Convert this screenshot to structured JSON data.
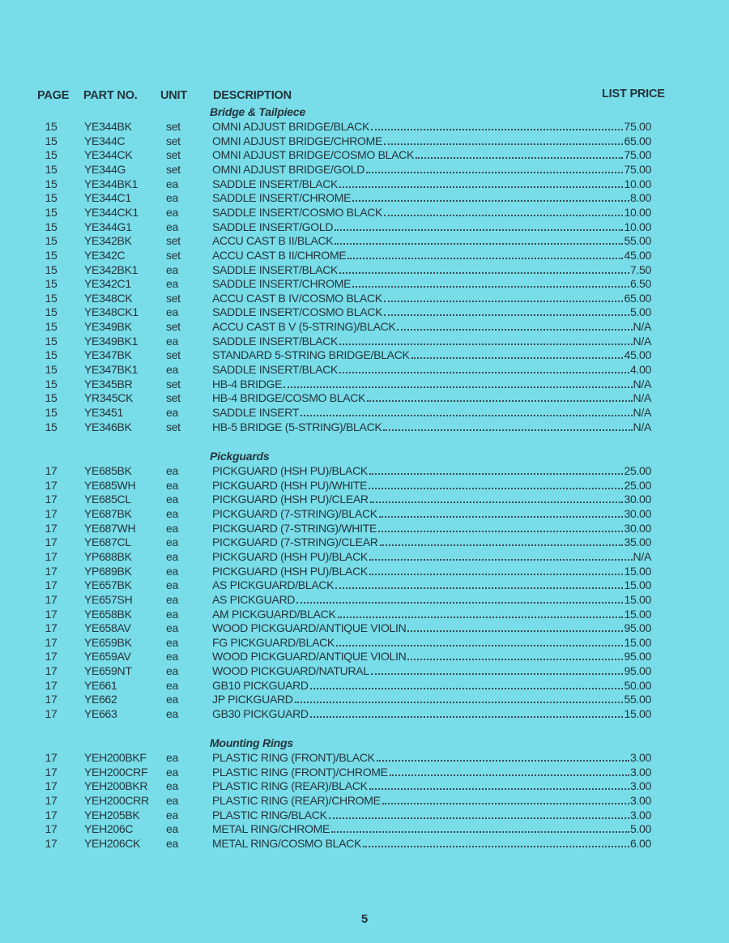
{
  "header": {
    "page": "PAGE",
    "part_no": "PART NO.",
    "unit": "UNIT",
    "description": "DESCRIPTION",
    "list_price": "LIST PRICE"
  },
  "sections": [
    {
      "title": "Bridge & Tailpiece",
      "rows": [
        [
          "15",
          "YE344BK",
          "set",
          "OMNI ADJUST BRIDGE/BLACK",
          "75.00"
        ],
        [
          "15",
          "YE344C",
          "set",
          "OMNI ADJUST BRIDGE/CHROME",
          "65.00"
        ],
        [
          "15",
          "YE344CK",
          "set",
          "OMNI ADJUST BRIDGE/COSMO BLACK",
          "75.00"
        ],
        [
          "15",
          "YE344G",
          "set",
          "OMNI ADJUST BRIDGE/GOLD",
          "75.00"
        ],
        [
          "15",
          "YE344BK1",
          "ea",
          "SADDLE INSERT/BLACK",
          "10.00"
        ],
        [
          "15",
          "YE344C1",
          "ea",
          "SADDLE INSERT/CHROME",
          "8.00"
        ],
        [
          "15",
          "YE344CK1",
          "ea",
          "SADDLE INSERT/COSMO BLACK",
          "10.00"
        ],
        [
          "15",
          "YE344G1",
          "ea",
          "SADDLE INSERT/GOLD",
          "10.00"
        ],
        [
          "15",
          "YE342BK",
          "set",
          "ACCU CAST B II/BLACK",
          "55.00"
        ],
        [
          "15",
          "YE342C",
          "set",
          "ACCU CAST B II/CHROME",
          "45.00"
        ],
        [
          "15",
          "YE342BK1",
          "ea",
          "SADDLE INSERT/BLACK",
          "7.50"
        ],
        [
          "15",
          "YE342C1",
          "ea",
          "SADDLE INSERT/CHROME",
          "6.50"
        ],
        [
          "15",
          "YE348CK",
          "set",
          "ACCU CAST B IV/COSMO BLACK",
          "65.00"
        ],
        [
          "15",
          "YE348CK1",
          "ea",
          "SADDLE INSERT/COSMO BLACK",
          "5.00"
        ],
        [
          "15",
          "YE349BK",
          "set",
          "ACCU CAST B V (5-STRING)/BLACK",
          "N/A"
        ],
        [
          "15",
          "YE349BK1",
          "ea",
          "SADDLE INSERT/BLACK",
          "N/A"
        ],
        [
          "15",
          "YE347BK",
          "set",
          "STANDARD 5-STRING BRIDGE/BLACK",
          "45.00"
        ],
        [
          "15",
          "YE347BK1",
          "ea",
          "SADDLE INSERT/BLACK",
          "4.00"
        ],
        [
          "15",
          "YE345BR",
          "set",
          "HB-4 BRIDGE",
          "N/A"
        ],
        [
          "15",
          "YR345CK",
          "set",
          "HB-4 BRIDGE/COSMO BLACK",
          "N/A"
        ],
        [
          "15",
          "YE3451",
          "ea",
          "SADDLE INSERT",
          "N/A"
        ],
        [
          "15",
          "YE346BK",
          "set",
          "HB-5 BRIDGE (5-STRING)/BLACK",
          "N/A"
        ]
      ]
    },
    {
      "title": "Pickguards",
      "rows": [
        [
          "17",
          "YE685BK",
          "ea",
          "PICKGUARD (HSH PU)/BLACK",
          "25.00"
        ],
        [
          "17",
          "YE685WH",
          "ea",
          "PICKGUARD (HSH PU)/WHITE",
          "25.00"
        ],
        [
          "17",
          "YE685CL",
          "ea",
          "PICKGUARD (HSH PU)/CLEAR",
          "30.00"
        ],
        [
          "17",
          "YE687BK",
          "ea",
          "PICKGUARD (7-STRING)/BLACK",
          "30.00"
        ],
        [
          "17",
          "YE687WH",
          "ea",
          "PICKGUARD (7-STRING)/WHITE",
          "30.00"
        ],
        [
          "17",
          "YE687CL",
          "ea",
          "PICKGUARD (7-STRING)/CLEAR",
          "35.00"
        ],
        [
          "17",
          "YP688BK",
          "ea",
          "PICKGUARD (HSH PU)/BLACK",
          "N/A"
        ],
        [
          "17",
          "YP689BK",
          "ea",
          "PICKGUARD (HSH PU)/BLACK",
          "15.00"
        ],
        [
          "17",
          "YE657BK",
          "ea",
          "AS PICKGUARD/BLACK",
          "15.00"
        ],
        [
          "17",
          "YE657SH",
          "ea",
          "AS PICKGUARD",
          "15.00"
        ],
        [
          "17",
          "YE658BK",
          "ea",
          "AM PICKGUARD/BLACK",
          "15.00"
        ],
        [
          "17",
          "YE658AV",
          "ea",
          "WOOD PICKGUARD/ANTIQUE VIOLIN",
          "95.00"
        ],
        [
          "17",
          "YE659BK",
          "ea",
          "FG PICKGUARD/BLACK",
          "15.00"
        ],
        [
          "17",
          "YE659AV",
          "ea",
          "WOOD PICKGUARD/ANTIQUE VIOLIN",
          "95.00"
        ],
        [
          "17",
          "YE659NT",
          "ea",
          "WOOD PICKGUARD/NATURAL",
          "95.00"
        ],
        [
          "17",
          "YE661",
          "ea",
          "GB10 PICKGUARD",
          "50.00"
        ],
        [
          "17",
          "YE662",
          "ea",
          "JP PICKGUARD",
          "55.00"
        ],
        [
          "17",
          "YE663",
          "ea",
          "GB30 PICKGUARD",
          "15.00"
        ]
      ]
    },
    {
      "title": "Mounting Rings",
      "rows": [
        [
          "17",
          "YEH200BKF",
          "ea",
          "PLASTIC RING (FRONT)/BLACK",
          "3.00"
        ],
        [
          "17",
          "YEH200CRF",
          "ea",
          "PLASTIC RING (FRONT)/CHROME",
          "3.00"
        ],
        [
          "17",
          "YEH200BKR",
          "ea",
          "PLASTIC RING (REAR)/BLACK",
          "3.00"
        ],
        [
          "17",
          "YEH200CRR",
          "ea",
          "PLASTIC RING (REAR)/CHROME",
          "3.00"
        ],
        [
          "17",
          "YEH205BK",
          "ea",
          "PLASTIC RING/BLACK",
          "3.00"
        ],
        [
          "17",
          "YEH206C",
          "ea",
          "METAL RING/CHROME",
          "5.00"
        ],
        [
          "17",
          "YEH206CK",
          "ea",
          "METAL RING/COSMO BLACK",
          "6.00"
        ]
      ]
    }
  ],
  "page_number": "5",
  "colors": {
    "background": "#78dde9",
    "text": "#24343c"
  }
}
